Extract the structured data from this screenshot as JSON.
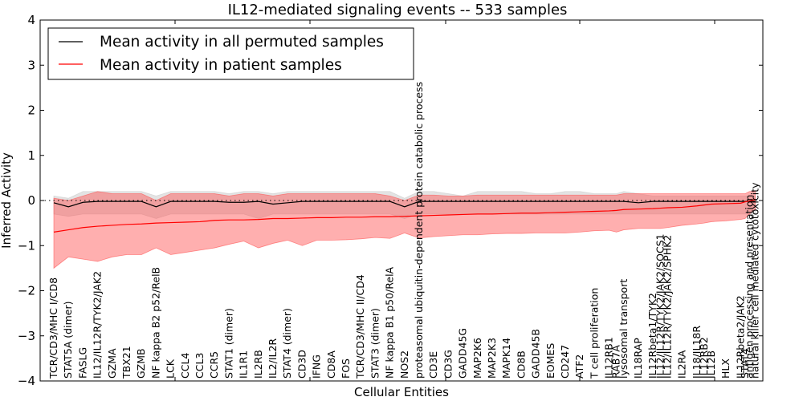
{
  "chart_data": {
    "type": "line",
    "title": "IL12-mediated signaling events -- 533 samples",
    "xlabel": "Cellular Entities",
    "ylabel": "Inferred Activity",
    "ylim": [
      -4,
      4
    ],
    "yticks": [
      "4",
      "3",
      "2",
      "1",
      "0",
      "−1",
      "−2",
      "−3",
      "−4"
    ],
    "ytick_values": [
      4,
      3,
      2,
      1,
      0,
      -1,
      -2,
      -3,
      -4
    ],
    "grid": false,
    "legend_position": "top-left",
    "reference_line": {
      "y": 0,
      "style": "dotted"
    },
    "categories": [
      "TCR/CD3/MHC I/CD8",
      "STAT5A (dimer)",
      "FASLG",
      "IL12/IL12R/TYK2/JAK2",
      "GZMA",
      "TBX21",
      "GZMB",
      "NF kappa B2 p52/RelB",
      "LCK",
      "CCL4",
      "CCL3",
      "CCR5",
      "STAT1 (dimer)",
      "IL1R1",
      "IL2RB",
      "IL2/IL2R",
      "STAT4 (dimer)",
      "CD3D",
      "IFNG",
      "CD8A",
      "FOS",
      "TCR/CD3/MHC II/CD4",
      "STAT3 (dimer)",
      "NF kappa B1 p50/RelA",
      "NOS2",
      "proteasomal ubiquitin-dependent protein catabolic process",
      "CD3E",
      "CD3G",
      "GADD45G",
      "MAP2K6",
      "MAP2K3",
      "MAPK14",
      "CD8B",
      "GADD45B",
      "EOMES",
      "CD247",
      "ATF2",
      "T cell proliferation",
      "IL12RB1",
      "RAB7A",
      "lysosomal transport",
      "IL18RAP",
      "IL12Rbeta1/TYK2",
      "IL12/IL12R/TYK2/JAK2/SOCS1",
      "IL12/IL12R/TYK2/JAK2/SPHK2",
      "IL2RA",
      "IL18/IL18R",
      "IL12RB2",
      "IL12B",
      "HLX",
      "IL12Rbeta2/JAK2",
      "STAT4",
      "antigen processing and presentation",
      "natural killer cell mediated cytotoxicity"
    ],
    "x_positions": [
      0,
      1,
      2,
      3,
      4,
      5,
      6,
      7,
      8,
      9,
      10,
      11,
      12,
      13,
      14,
      15,
      16,
      17,
      18,
      19,
      20,
      21,
      22,
      23,
      24,
      25,
      26,
      27,
      28,
      29,
      30,
      31,
      32,
      33,
      34,
      35,
      36,
      37,
      38,
      38.5,
      39,
      40,
      41,
      41.5,
      42,
      43,
      44,
      44.5,
      45,
      46,
      47,
      47.3,
      47.6,
      48
    ],
    "series": [
      {
        "name": "Mean activity in all permuted samples",
        "color": "#000000",
        "values": [
          -0.05,
          -0.14,
          -0.04,
          -0.02,
          -0.02,
          -0.02,
          -0.02,
          -0.14,
          -0.02,
          -0.02,
          -0.02,
          -0.02,
          -0.04,
          -0.04,
          -0.02,
          -0.08,
          -0.05,
          -0.02,
          -0.02,
          -0.02,
          -0.02,
          -0.02,
          -0.02,
          -0.02,
          -0.14,
          -0.02,
          -0.02,
          -0.02,
          -0.02,
          -0.02,
          -0.02,
          -0.02,
          -0.02,
          -0.02,
          -0.02,
          -0.02,
          -0.02,
          -0.02,
          -0.02,
          -0.02,
          -0.02,
          -0.05,
          -0.02,
          -0.02,
          -0.02,
          -0.02,
          -0.02,
          -0.02,
          -0.02,
          -0.02,
          -0.02,
          -0.02,
          -0.02,
          -0.02
        ],
        "band_upper": [
          0.1,
          0.05,
          0.2,
          0.2,
          0.2,
          0.2,
          0.2,
          0.1,
          0.2,
          0.2,
          0.2,
          0.2,
          0.15,
          0.2,
          0.2,
          0.15,
          0.2,
          0.2,
          0.2,
          0.2,
          0.2,
          0.2,
          0.2,
          0.2,
          0.05,
          0.2,
          0.2,
          0.15,
          0.1,
          0.2,
          0.2,
          0.2,
          0.2,
          0.15,
          0.15,
          0.2,
          0.2,
          0.15,
          0.15,
          0.15,
          0.2,
          0.15,
          0.1,
          0.1,
          0.1,
          0.1,
          0.1,
          0.1,
          0.1,
          0.1,
          0.1,
          0.1,
          0.1,
          0.1
        ],
        "band_lower": [
          -0.3,
          -0.35,
          -0.3,
          -0.3,
          -0.3,
          -0.3,
          -0.3,
          -0.4,
          -0.3,
          -0.3,
          -0.3,
          -0.3,
          -0.3,
          -0.3,
          -0.4,
          -0.3,
          -0.3,
          -0.3,
          -0.3,
          -0.3,
          -0.3,
          -0.3,
          -0.3,
          -0.3,
          -0.4,
          -0.3,
          -0.3,
          -0.3,
          -0.3,
          -0.3,
          -0.3,
          -0.3,
          -0.3,
          -0.3,
          -0.3,
          -0.3,
          -0.3,
          -0.3,
          -0.3,
          -0.3,
          -0.3,
          -0.3,
          -0.3,
          -0.3,
          -0.3,
          -0.3,
          -0.3,
          -0.3,
          -0.3,
          -0.3,
          -0.3,
          -0.3,
          -0.3,
          -0.3
        ]
      },
      {
        "name": "Mean activity in patient samples",
        "color": "#ff0000",
        "values": [
          -0.7,
          -0.65,
          -0.6,
          -0.57,
          -0.55,
          -0.53,
          -0.52,
          -0.5,
          -0.49,
          -0.48,
          -0.47,
          -0.44,
          -0.43,
          -0.43,
          -0.42,
          -0.4,
          -0.4,
          -0.39,
          -0.38,
          -0.38,
          -0.37,
          -0.37,
          -0.36,
          -0.36,
          -0.35,
          -0.34,
          -0.33,
          -0.32,
          -0.31,
          -0.3,
          -0.3,
          -0.29,
          -0.28,
          -0.28,
          -0.27,
          -0.26,
          -0.25,
          -0.24,
          -0.23,
          -0.22,
          -0.2,
          -0.19,
          -0.18,
          -0.17,
          -0.16,
          -0.15,
          -0.12,
          -0.1,
          -0.08,
          -0.07,
          -0.06,
          -0.03,
          -0.01,
          0.02
        ],
        "band_upper": [
          0.05,
          0.0,
          0.1,
          0.2,
          0.15,
          0.15,
          0.15,
          0.0,
          0.15,
          0.15,
          0.15,
          0.15,
          0.1,
          0.15,
          0.15,
          0.1,
          0.15,
          0.15,
          0.15,
          0.15,
          0.15,
          0.15,
          0.15,
          0.1,
          0.0,
          0.12,
          0.12,
          0.1,
          0.1,
          0.12,
          0.12,
          0.12,
          0.12,
          0.12,
          0.12,
          0.12,
          0.12,
          0.12,
          0.12,
          0.12,
          0.15,
          0.15,
          0.15,
          0.15,
          0.15,
          0.15,
          0.15,
          0.15,
          0.15,
          0.15,
          0.15,
          0.15,
          0.2,
          0.2
        ],
        "band_lower": [
          -1.5,
          -1.25,
          -1.3,
          -1.35,
          -1.25,
          -1.2,
          -1.2,
          -1.05,
          -1.2,
          -1.15,
          -1.1,
          -1.05,
          -0.97,
          -0.9,
          -1.05,
          -0.95,
          -0.88,
          -1.0,
          -0.88,
          -0.88,
          -0.87,
          -0.85,
          -0.82,
          -0.84,
          -0.72,
          -0.83,
          -0.8,
          -0.78,
          -0.76,
          -0.76,
          -0.74,
          -0.73,
          -0.73,
          -0.72,
          -0.72,
          -0.72,
          -0.7,
          -0.67,
          -0.66,
          -0.7,
          -0.65,
          -0.62,
          -0.62,
          -0.62,
          -0.6,
          -0.55,
          -0.52,
          -0.5,
          -0.47,
          -0.45,
          -0.42,
          -0.4,
          -0.3,
          -0.2
        ]
      }
    ]
  }
}
